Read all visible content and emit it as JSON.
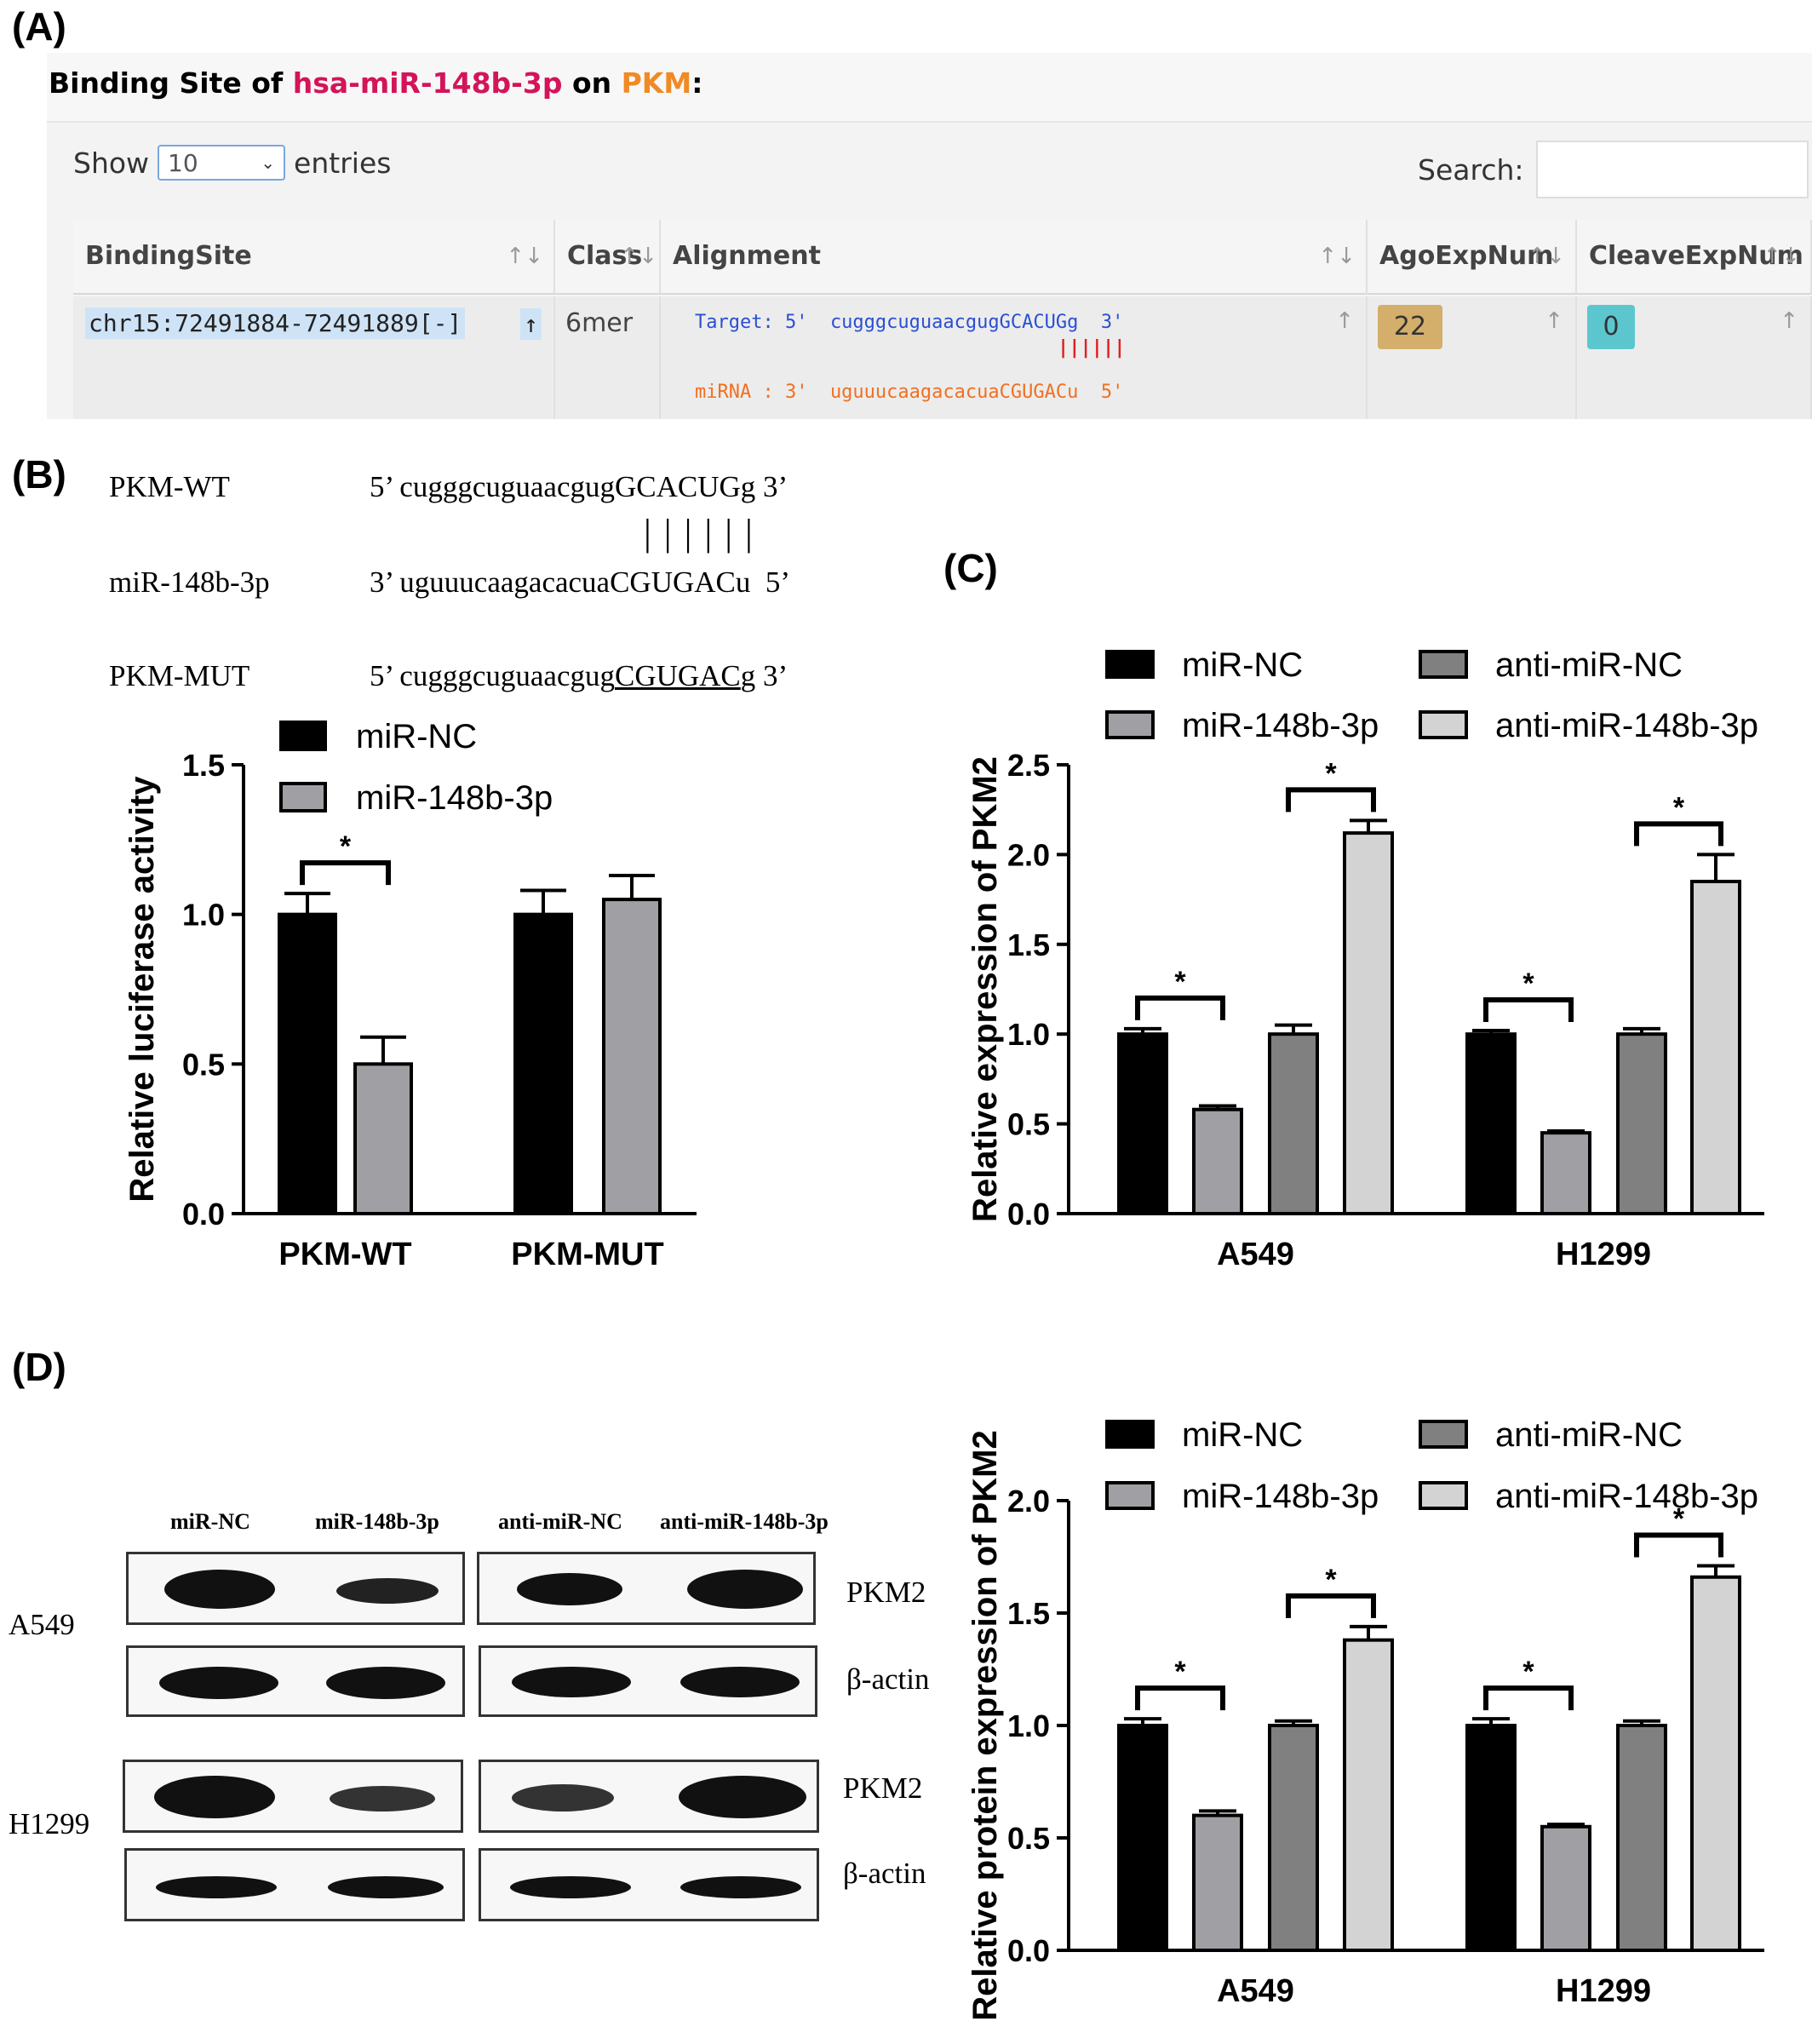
{
  "panel_labels": {
    "a": "(A)",
    "b": "(B)",
    "c": "(C)",
    "d": "(D)"
  },
  "panel_a": {
    "title_prefix": "Binding Site of ",
    "mirna": "hsa-miR-148b-3p",
    "title_mid": " on ",
    "gene": "PKM",
    "title_suffix": ":",
    "show_label": "Show",
    "entries_value": "10",
    "entries_label": "entries",
    "search_label": "Search:",
    "columns": [
      "BindingSite",
      "Class",
      "Alignment",
      "AgoExpNum",
      "CleaveExpNum"
    ],
    "row": {
      "binding_site": "chr15:72491884-72491889[-]",
      "class": "6mer",
      "target_line": "Target: 5'  cugggcuguaacgugGCACUGg  3'",
      "pair_line": "||||||",
      "mirna_line": "miRNA : 3'  uguuucaagacacuaCGUGACu  5'",
      "ago": "22",
      "cleave": "0"
    },
    "colors": {
      "mirna": "#d4145a",
      "gene": "#f08a24",
      "ago_badge": "#d4ae6b",
      "cleave_badge": "#5cc6cf"
    }
  },
  "panel_b_seq": {
    "wt_name": "PKM-WT",
    "wt_seq_a": "5’ cugggcuguaacgug",
    "wt_seq_b": "GCACUG",
    "wt_seq_c": "g 3’",
    "pair_bars": "| | | | | |",
    "mir_name": "miR-148b-3p",
    "mir_seq": "3’ uguuucaagacacuaCGUGACu  5’",
    "mut_name": "PKM-MUT",
    "mut_seq_a": "5’ cugggcuguaacgug",
    "mut_seq_b": "CGUGAC",
    "mut_seq_c": "g 3’"
  },
  "panel_d_blot": {
    "lanes": [
      "miR-NC",
      "miR-148b-3p",
      "anti-miR-NC",
      "anti-miR-148b-3p"
    ],
    "cell_a549": "A549",
    "cell_h1299": "H1299",
    "row_pkm2_a": "PKM2",
    "row_actin_a": "β-actin",
    "row_pkm2_b": "PKM2",
    "row_actin_b": "β-actin"
  },
  "chart_data": [
    {
      "id": "B",
      "type": "bar",
      "categories": [
        "PKM-WT",
        "PKM-MUT"
      ],
      "series": [
        {
          "name": "miR-NC",
          "values": [
            1.0,
            1.0
          ],
          "errors": [
            0.07,
            0.08
          ],
          "color": "#000000"
        },
        {
          "name": "miR-148b-3p",
          "values": [
            0.5,
            1.05
          ],
          "errors": [
            0.09,
            0.08
          ],
          "color": "#a0a0a4"
        }
      ],
      "ylabel": "Relative luciferase activity",
      "ylim": [
        0,
        1.5
      ],
      "yticks": [
        "0.0",
        "0.5",
        "1.0",
        "1.5"
      ],
      "significance": [
        {
          "category": "PKM-WT",
          "pair": [
            0,
            1
          ],
          "mark": "*"
        }
      ],
      "legend": "top-left"
    },
    {
      "id": "C",
      "type": "bar",
      "categories": [
        "A549",
        "H1299"
      ],
      "series": [
        {
          "name": "miR-NC",
          "values": [
            1.0,
            1.0
          ],
          "errors": [
            0.03,
            0.02
          ],
          "color": "#000000"
        },
        {
          "name": "miR-148b-3p",
          "values": [
            0.58,
            0.45
          ],
          "errors": [
            0.02,
            0.01
          ],
          "color": "#a0a0a4"
        },
        {
          "name": "anti-miR-NC",
          "values": [
            1.0,
            1.0
          ],
          "errors": [
            0.05,
            0.03
          ],
          "color": "#808080"
        },
        {
          "name": "anti-miR-148b-3p",
          "values": [
            2.12,
            1.85
          ],
          "errors": [
            0.07,
            0.15
          ],
          "color": "#d3d3d3"
        }
      ],
      "ylabel": "Relative expression of PKM2",
      "ylim": [
        0,
        2.5
      ],
      "yticks": [
        "0.0",
        "0.5",
        "1.0",
        "1.5",
        "2.0",
        "2.5"
      ],
      "significance": [
        {
          "category": "A549",
          "pair": [
            0,
            1
          ],
          "mark": "*"
        },
        {
          "category": "A549",
          "pair": [
            2,
            3
          ],
          "mark": "*"
        },
        {
          "category": "H1299",
          "pair": [
            0,
            1
          ],
          "mark": "*"
        },
        {
          "category": "H1299",
          "pair": [
            2,
            3
          ],
          "mark": "*"
        }
      ],
      "legend": "top"
    },
    {
      "id": "D",
      "type": "bar",
      "categories": [
        "A549",
        "H1299"
      ],
      "series": [
        {
          "name": "miR-NC",
          "values": [
            1.0,
            1.0
          ],
          "errors": [
            0.03,
            0.03
          ],
          "color": "#000000"
        },
        {
          "name": "miR-148b-3p",
          "values": [
            0.6,
            0.55
          ],
          "errors": [
            0.02,
            0.01
          ],
          "color": "#a0a0a4"
        },
        {
          "name": "anti-miR-NC",
          "values": [
            1.0,
            1.0
          ],
          "errors": [
            0.02,
            0.02
          ],
          "color": "#808080"
        },
        {
          "name": "anti-miR-148b-3p",
          "values": [
            1.38,
            1.66
          ],
          "errors": [
            0.06,
            0.05
          ],
          "color": "#d3d3d3"
        }
      ],
      "ylabel": "Relative protein expression of PKM2",
      "ylim": [
        0,
        2.0
      ],
      "yticks": [
        "0.0",
        "0.5",
        "1.0",
        "1.5",
        "2.0"
      ],
      "significance": [
        {
          "category": "A549",
          "pair": [
            0,
            1
          ],
          "mark": "*"
        },
        {
          "category": "A549",
          "pair": [
            2,
            3
          ],
          "mark": "*"
        },
        {
          "category": "H1299",
          "pair": [
            0,
            1
          ],
          "mark": "*"
        },
        {
          "category": "H1299",
          "pair": [
            2,
            3
          ],
          "mark": "*"
        }
      ],
      "legend": "top"
    }
  ]
}
